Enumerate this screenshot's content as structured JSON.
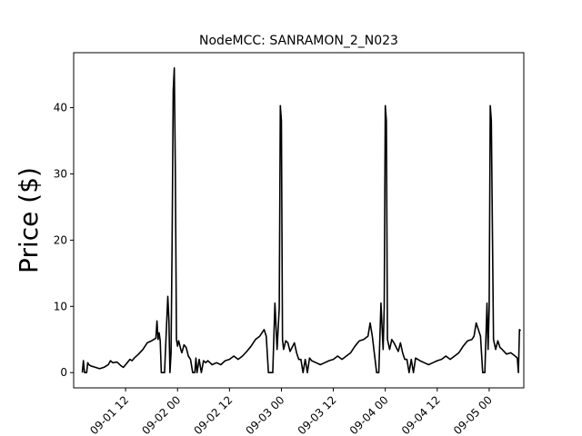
{
  "chart_data": {
    "type": "line",
    "title": "NodeMCC: SANRAMON_2_N023",
    "xlabel": "",
    "ylabel": "Price ($)",
    "x_type": "datetime",
    "xlim": [
      "2021-09-01 00:00",
      "2021-09-05 08:00"
    ],
    "ylim": [
      -2.3,
      48.3
    ],
    "x_ticks": [
      {
        "value": "2021-09-01 12:00",
        "label": "09-01 12"
      },
      {
        "value": "2021-09-02 00:00",
        "label": "09-02 00"
      },
      {
        "value": "2021-09-02 12:00",
        "label": "09-02 12"
      },
      {
        "value": "2021-09-03 00:00",
        "label": "09-03 00"
      },
      {
        "value": "2021-09-03 12:00",
        "label": "09-03 12"
      },
      {
        "value": "2021-09-04 00:00",
        "label": "09-04 00"
      },
      {
        "value": "2021-09-04 12:00",
        "label": "09-04 12"
      },
      {
        "value": "2021-09-05 00:00",
        "label": "09-05 00"
      }
    ],
    "y_ticks": [
      0,
      10,
      20,
      30,
      40
    ],
    "grid": false,
    "line_color": "#000000",
    "series": [
      {
        "name": "",
        "x": [
          "2021-09-01 02:00",
          "2021-09-01 02:15",
          "2021-09-01 02:30",
          "2021-09-01 03:00",
          "2021-09-01 03:15",
          "2021-09-01 03:30",
          "2021-09-01 04:00",
          "2021-09-01 05:00",
          "2021-09-01 06:00",
          "2021-09-01 07:00",
          "2021-09-01 08:00",
          "2021-09-01 08:30",
          "2021-09-01 09:00",
          "2021-09-01 10:00",
          "2021-09-01 11:00",
          "2021-09-01 11:30",
          "2021-09-01 12:00",
          "2021-09-01 12:30",
          "2021-09-01 13:00",
          "2021-09-01 13:30",
          "2021-09-01 14:00",
          "2021-09-01 15:00",
          "2021-09-01 16:00",
          "2021-09-01 17:00",
          "2021-09-01 18:00",
          "2021-09-01 19:00",
          "2021-09-01 19:15",
          "2021-09-01 19:30",
          "2021-09-01 19:45",
          "2021-09-01 20:00",
          "2021-09-01 20:15",
          "2021-09-01 21:00",
          "2021-09-01 21:45",
          "2021-09-01 22:00",
          "2021-09-01 22:15",
          "2021-09-01 22:30",
          "2021-09-01 22:45",
          "2021-09-01 23:00",
          "2021-09-01 23:15",
          "2021-09-01 23:30",
          "2021-09-01 23:45",
          "2021-09-02 00:00",
          "2021-09-02 00:15",
          "2021-09-02 00:30",
          "2021-09-02 00:45",
          "2021-09-02 01:00",
          "2021-09-02 01:30",
          "2021-09-02 02:00",
          "2021-09-02 02:30",
          "2021-09-02 03:00",
          "2021-09-02 03:30",
          "2021-09-02 04:00",
          "2021-09-02 04:15",
          "2021-09-02 04:30",
          "2021-09-02 05:00",
          "2021-09-02 05:30",
          "2021-09-02 06:00",
          "2021-09-02 06:30",
          "2021-09-02 07:00",
          "2021-09-02 07:30",
          "2021-09-02 08:00",
          "2021-09-02 09:00",
          "2021-09-02 10:00",
          "2021-09-02 11:00",
          "2021-09-02 12:00",
          "2021-09-02 13:00",
          "2021-09-02 14:00",
          "2021-09-02 15:00",
          "2021-09-02 16:00",
          "2021-09-02 17:00",
          "2021-09-02 18:00",
          "2021-09-02 19:00",
          "2021-09-02 20:00",
          "2021-09-02 20:30",
          "2021-09-02 21:00",
          "2021-09-02 22:00",
          "2021-09-02 22:30",
          "2021-09-02 23:00",
          "2021-09-02 23:30",
          "2021-09-02 23:45",
          "2021-09-03 00:00",
          "2021-09-03 00:15",
          "2021-09-03 00:30",
          "2021-09-03 01:00",
          "2021-09-03 01:30",
          "2021-09-03 02:00",
          "2021-09-03 03:00",
          "2021-09-03 03:30",
          "2021-09-03 04:00",
          "2021-09-03 04:30",
          "2021-09-03 05:00",
          "2021-09-03 05:30",
          "2021-09-03 06:00",
          "2021-09-03 06:30",
          "2021-09-03 07:00",
          "2021-09-03 08:00",
          "2021-09-03 09:00",
          "2021-09-03 10:00",
          "2021-09-03 11:00",
          "2021-09-03 12:00",
          "2021-09-03 13:00",
          "2021-09-03 14:00",
          "2021-09-03 15:00",
          "2021-09-03 16:00",
          "2021-09-03 17:00",
          "2021-09-03 18:00",
          "2021-09-03 19:00",
          "2021-09-03 20:00",
          "2021-09-03 20:30",
          "2021-09-03 21:00",
          "2021-09-03 22:00",
          "2021-09-03 22:30",
          "2021-09-03 23:00",
          "2021-09-03 23:30",
          "2021-09-03 23:45",
          "2021-09-04 00:00",
          "2021-09-04 00:15",
          "2021-09-04 00:30",
          "2021-09-04 01:00",
          "2021-09-04 01:30",
          "2021-09-04 02:00",
          "2021-09-04 03:00",
          "2021-09-04 03:30",
          "2021-09-04 04:00",
          "2021-09-04 04:30",
          "2021-09-04 05:00",
          "2021-09-04 05:30",
          "2021-09-04 06:00",
          "2021-09-04 06:30",
          "2021-09-04 07:00",
          "2021-09-04 08:00",
          "2021-09-04 09:00",
          "2021-09-04 10:00",
          "2021-09-04 11:00",
          "2021-09-04 12:00",
          "2021-09-04 13:00",
          "2021-09-04 14:00",
          "2021-09-04 15:00",
          "2021-09-04 16:00",
          "2021-09-04 17:00",
          "2021-09-04 18:00",
          "2021-09-04 19:00",
          "2021-09-04 20:00",
          "2021-09-04 20:30",
          "2021-09-04 21:00",
          "2021-09-04 22:00",
          "2021-09-04 22:30",
          "2021-09-04 23:00",
          "2021-09-04 23:30",
          "2021-09-04 23:45",
          "2021-09-05 00:00",
          "2021-09-05 00:15",
          "2021-09-05 00:30",
          "2021-09-05 01:00",
          "2021-09-05 01:30",
          "2021-09-05 02:00",
          "2021-09-05 02:30",
          "2021-09-05 03:00",
          "2021-09-05 04:00",
          "2021-09-05 05:00",
          "2021-09-05 06:00",
          "2021-09-05 06:30",
          "2021-09-05 06:45",
          "2021-09-05 07:00",
          "2021-09-05 07:15"
        ],
        "y": [
          0,
          1.8,
          0,
          0,
          1.5,
          1.2,
          1.0,
          0.8,
          0.6,
          0.8,
          1.2,
          1.8,
          1.5,
          1.6,
          1.0,
          0.8,
          1.2,
          1.6,
          2.0,
          1.8,
          2.2,
          2.8,
          3.5,
          4.5,
          4.8,
          5.2,
          7.8,
          5.0,
          6.0,
          4.8,
          0,
          0,
          11.5,
          8.0,
          0,
          3.0,
          20.0,
          42.5,
          46.0,
          30.0,
          5.0,
          4.0,
          4.8,
          4.2,
          3.5,
          3.0,
          4.2,
          3.8,
          2.5,
          2.0,
          0,
          0,
          2.2,
          0,
          2.0,
          0,
          1.8,
          1.5,
          1.8,
          1.5,
          1.2,
          1.5,
          1.2,
          1.8,
          2.0,
          2.5,
          2.0,
          2.5,
          3.2,
          4.0,
          5.0,
          5.5,
          6.5,
          5.5,
          0,
          0,
          10.5,
          3.5,
          9.8,
          40.3,
          38.0,
          5.0,
          3.5,
          4.8,
          4.5,
          3.2,
          4.5,
          3.0,
          2.0,
          2.0,
          0,
          2.0,
          0,
          2.2,
          1.8,
          1.5,
          1.2,
          1.5,
          1.8,
          2.0,
          2.5,
          2.0,
          2.5,
          3.0,
          4.0,
          4.8,
          5.0,
          5.5,
          7.5,
          5.5,
          0,
          0,
          10.5,
          3.5,
          9.8,
          40.3,
          38.0,
          5.0,
          3.5,
          5.0,
          4.5,
          3.2,
          4.5,
          3.0,
          2.0,
          2.0,
          0,
          2.0,
          0,
          2.2,
          1.8,
          1.5,
          1.2,
          1.5,
          1.8,
          2.0,
          2.5,
          2.0,
          2.5,
          3.0,
          4.0,
          4.8,
          5.0,
          5.5,
          7.5,
          5.5,
          0,
          0,
          10.5,
          3.5,
          9.8,
          40.3,
          38.0,
          5.0,
          3.5,
          4.8,
          3.8,
          3.5,
          2.8,
          3.0,
          2.5,
          2.2,
          0,
          6.5,
          6.3
        ]
      }
    ]
  }
}
